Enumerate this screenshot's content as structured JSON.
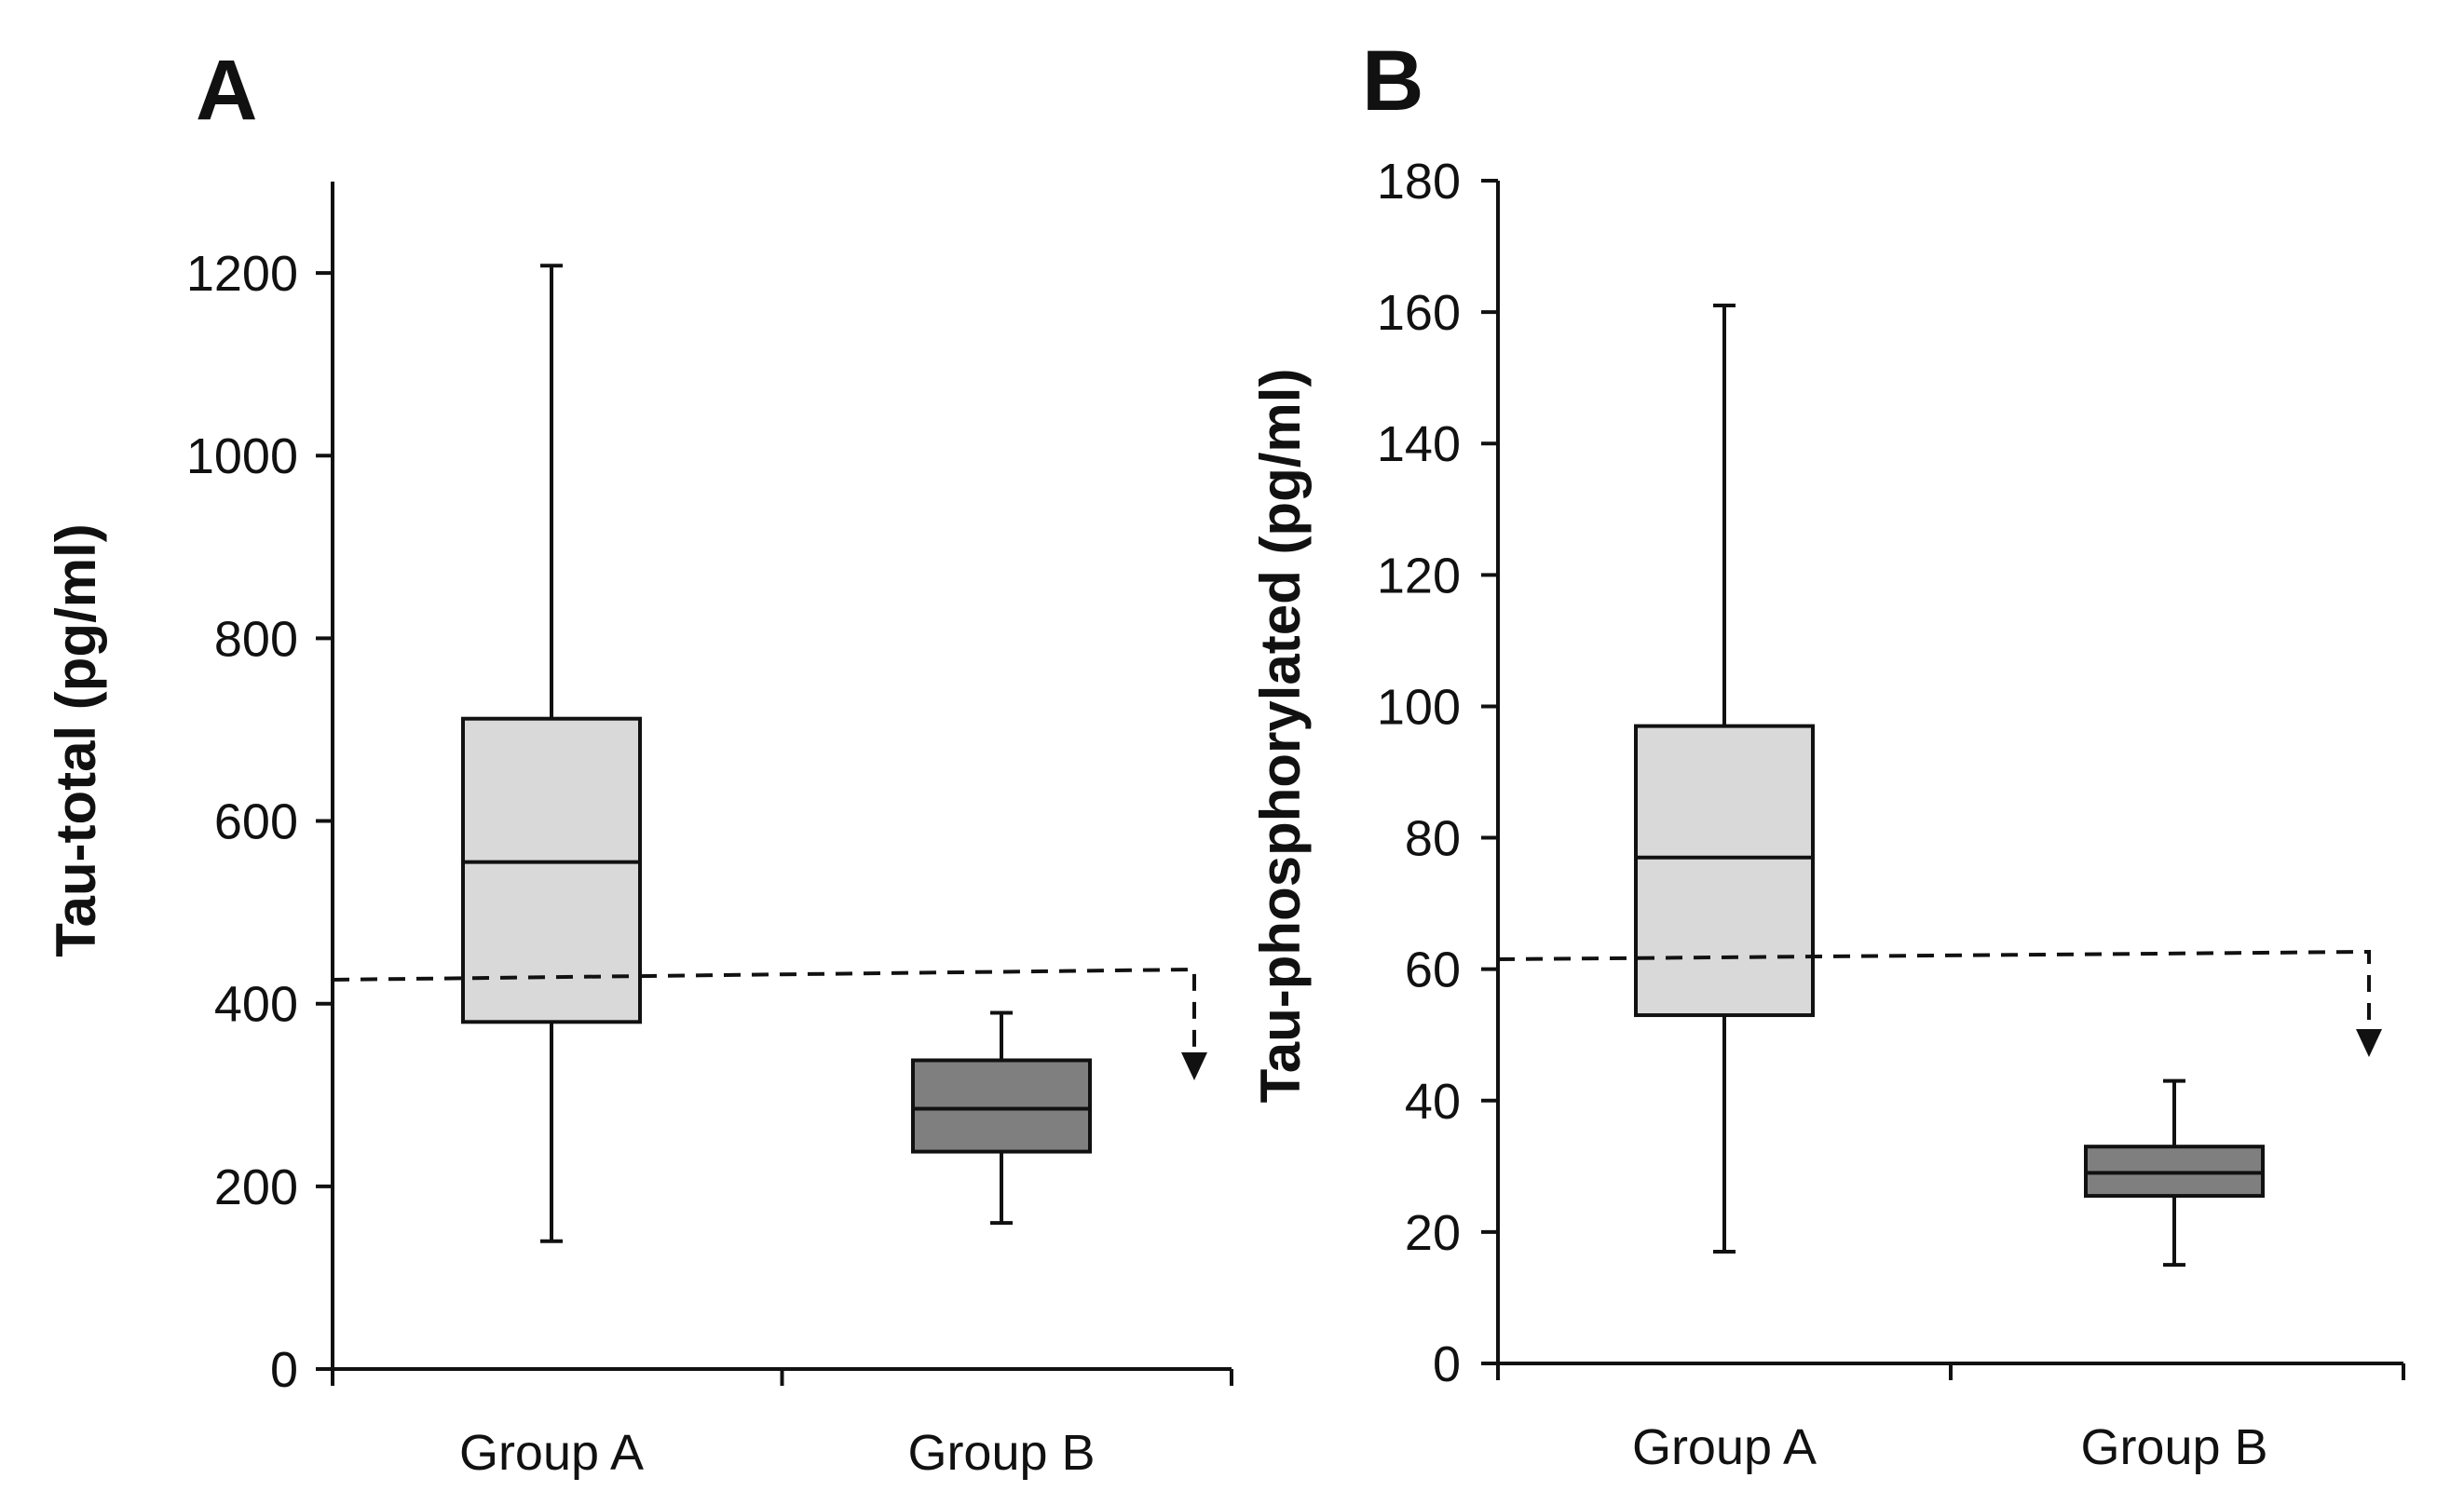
{
  "chart_data": [
    {
      "type": "box",
      "panel": "A",
      "ylabel": "Tau-total (pg/ml)",
      "ylim": [
        0,
        1300
      ],
      "yticks": [
        0,
        200,
        400,
        600,
        800,
        1000,
        1200
      ],
      "categories": [
        "Group A",
        "Group B"
      ],
      "boxes": [
        {
          "name": "Group A",
          "min": 140,
          "q1": 380,
          "median": 555,
          "q3": 712,
          "max": 1208,
          "fill": "#d9d9d9"
        },
        {
          "name": "Group B",
          "min": 160,
          "q1": 238,
          "median": 285,
          "q3": 338,
          "max": 390,
          "fill": "#7f7f7f"
        }
      ],
      "cutoff": {
        "value": 425,
        "style": "dashed",
        "arrow": "down"
      }
    },
    {
      "type": "box",
      "panel": "B",
      "ylabel": "Tau-phosphorylated (pg/ml)",
      "ylim": [
        0,
        180
      ],
      "yticks": [
        0,
        20,
        40,
        60,
        80,
        100,
        120,
        140,
        160,
        180
      ],
      "categories": [
        "Group A",
        "Group B"
      ],
      "boxes": [
        {
          "name": "Group A",
          "min": 17,
          "q1": 53,
          "median": 77,
          "q3": 97,
          "max": 161,
          "fill": "#d9d9d9"
        },
        {
          "name": "Group B",
          "min": 15,
          "q1": 25.5,
          "median": 29,
          "q3": 33,
          "max": 43,
          "fill": "#7f7f7f"
        }
      ],
      "cutoff": {
        "value": 61.5,
        "style": "dashed",
        "arrow": "down"
      }
    }
  ]
}
